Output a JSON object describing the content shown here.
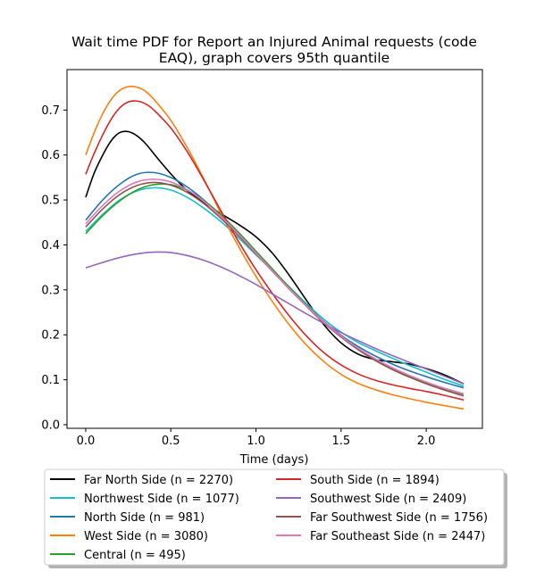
{
  "chart_data": {
    "type": "line",
    "title_lines": [
      "Wait time PDF for Report an Injured Animal  requests (code",
      "EAQ), graph covers 95th quantile"
    ],
    "xlabel": "Time (days)",
    "ylabel": "",
    "xlim": [
      -0.11,
      2.33
    ],
    "ylim": [
      -0.008,
      0.79
    ],
    "x_ticks": [
      0.0,
      0.5,
      1.0,
      1.5,
      2.0
    ],
    "x_tick_labels": [
      "0.0",
      "0.5",
      "1.0",
      "1.5",
      "2.0"
    ],
    "y_ticks": [
      0.0,
      0.1,
      0.2,
      0.3,
      0.4,
      0.5,
      0.6,
      0.7
    ],
    "y_tick_labels": [
      "0.0",
      "0.1",
      "0.2",
      "0.3",
      "0.4",
      "0.5",
      "0.6",
      "0.7"
    ],
    "grid": false,
    "legend_placement": "below plot, two columns",
    "series": [
      {
        "name": "Far North Side (n = 2270)",
        "color": "#000000",
        "points": [
          [
            0,
            0.506
          ],
          [
            0.05,
            0.56
          ],
          [
            0.1,
            0.6
          ],
          [
            0.15,
            0.632
          ],
          [
            0.2,
            0.65
          ],
          [
            0.25,
            0.652
          ],
          [
            0.3,
            0.643
          ],
          [
            0.35,
            0.626
          ],
          [
            0.4,
            0.603
          ],
          [
            0.45,
            0.58
          ],
          [
            0.5,
            0.558
          ],
          [
            0.55,
            0.538
          ],
          [
            0.6,
            0.52
          ],
          [
            0.7,
            0.493
          ],
          [
            0.8,
            0.468
          ],
          [
            0.9,
            0.445
          ],
          [
            1.0,
            0.418
          ],
          [
            1.1,
            0.38
          ],
          [
            1.2,
            0.33
          ],
          [
            1.3,
            0.275
          ],
          [
            1.4,
            0.222
          ],
          [
            1.5,
            0.182
          ],
          [
            1.6,
            0.157
          ],
          [
            1.7,
            0.145
          ],
          [
            1.8,
            0.14
          ],
          [
            1.9,
            0.135
          ],
          [
            2.0,
            0.125
          ],
          [
            2.1,
            0.112
          ],
          [
            2.22,
            0.091
          ]
        ]
      },
      {
        "name": "Northwest Side (n = 1077)",
        "color": "#17becf",
        "points": [
          [
            0,
            0.43
          ],
          [
            0.1,
            0.468
          ],
          [
            0.2,
            0.5
          ],
          [
            0.3,
            0.52
          ],
          [
            0.4,
            0.527
          ],
          [
            0.5,
            0.522
          ],
          [
            0.6,
            0.505
          ],
          [
            0.7,
            0.48
          ],
          [
            0.8,
            0.45
          ],
          [
            0.9,
            0.415
          ],
          [
            1.0,
            0.378
          ],
          [
            1.1,
            0.342
          ],
          [
            1.2,
            0.305
          ],
          [
            1.3,
            0.268
          ],
          [
            1.4,
            0.234
          ],
          [
            1.5,
            0.206
          ],
          [
            1.6,
            0.183
          ],
          [
            1.7,
            0.165
          ],
          [
            1.8,
            0.148
          ],
          [
            1.9,
            0.132
          ],
          [
            2.0,
            0.117
          ],
          [
            2.1,
            0.102
          ],
          [
            2.22,
            0.086
          ]
        ]
      },
      {
        "name": "North Side (n = 981)",
        "color": "#1f77b4",
        "points": [
          [
            0,
            0.455
          ],
          [
            0.1,
            0.5
          ],
          [
            0.2,
            0.535
          ],
          [
            0.3,
            0.557
          ],
          [
            0.4,
            0.561
          ],
          [
            0.5,
            0.55
          ],
          [
            0.6,
            0.528
          ],
          [
            0.7,
            0.498
          ],
          [
            0.8,
            0.462
          ],
          [
            0.9,
            0.422
          ],
          [
            1.0,
            0.381
          ],
          [
            1.1,
            0.341
          ],
          [
            1.2,
            0.302
          ],
          [
            1.3,
            0.264
          ],
          [
            1.4,
            0.229
          ],
          [
            1.5,
            0.199
          ],
          [
            1.6,
            0.174
          ],
          [
            1.7,
            0.153
          ],
          [
            1.8,
            0.135
          ],
          [
            1.9,
            0.12
          ],
          [
            2.0,
            0.107
          ],
          [
            2.1,
            0.095
          ],
          [
            2.22,
            0.082
          ]
        ]
      },
      {
        "name": "West Side (n = 3080)",
        "color": "#ff7f0e",
        "points": [
          [
            0,
            0.6
          ],
          [
            0.05,
            0.65
          ],
          [
            0.1,
            0.692
          ],
          [
            0.15,
            0.724
          ],
          [
            0.2,
            0.744
          ],
          [
            0.25,
            0.752
          ],
          [
            0.3,
            0.751
          ],
          [
            0.35,
            0.742
          ],
          [
            0.4,
            0.724
          ],
          [
            0.5,
            0.677
          ],
          [
            0.6,
            0.614
          ],
          [
            0.7,
            0.542
          ],
          [
            0.8,
            0.466
          ],
          [
            0.9,
            0.395
          ],
          [
            1.0,
            0.33
          ],
          [
            1.1,
            0.272
          ],
          [
            1.2,
            0.22
          ],
          [
            1.3,
            0.176
          ],
          [
            1.4,
            0.14
          ],
          [
            1.5,
            0.112
          ],
          [
            1.6,
            0.092
          ],
          [
            1.7,
            0.078
          ],
          [
            1.8,
            0.067
          ],
          [
            1.9,
            0.058
          ],
          [
            2.0,
            0.05
          ],
          [
            2.1,
            0.043
          ],
          [
            2.22,
            0.035
          ]
        ]
      },
      {
        "name": "Central (n = 495)",
        "color": "#2ca02c",
        "points": [
          [
            0,
            0.425
          ],
          [
            0.1,
            0.465
          ],
          [
            0.2,
            0.498
          ],
          [
            0.3,
            0.522
          ],
          [
            0.4,
            0.534
          ],
          [
            0.5,
            0.534
          ],
          [
            0.6,
            0.521
          ],
          [
            0.7,
            0.497
          ],
          [
            0.8,
            0.465
          ],
          [
            0.9,
            0.427
          ],
          [
            1.0,
            0.386
          ],
          [
            1.1,
            0.345
          ],
          [
            1.2,
            0.304
          ],
          [
            1.3,
            0.265
          ],
          [
            1.4,
            0.228
          ],
          [
            1.5,
            0.196
          ],
          [
            1.6,
            0.168
          ],
          [
            1.7,
            0.145
          ],
          [
            1.8,
            0.125
          ],
          [
            1.9,
            0.108
          ],
          [
            2.0,
            0.094
          ],
          [
            2.1,
            0.081
          ],
          [
            2.22,
            0.068
          ]
        ]
      },
      {
        "name": "South Side (n = 1894)",
        "color": "#d62728",
        "points": [
          [
            0,
            0.557
          ],
          [
            0.05,
            0.604
          ],
          [
            0.1,
            0.645
          ],
          [
            0.15,
            0.68
          ],
          [
            0.2,
            0.705
          ],
          [
            0.25,
            0.718
          ],
          [
            0.3,
            0.72
          ],
          [
            0.35,
            0.714
          ],
          [
            0.4,
            0.7
          ],
          [
            0.5,
            0.66
          ],
          [
            0.6,
            0.605
          ],
          [
            0.7,
            0.54
          ],
          [
            0.8,
            0.472
          ],
          [
            0.9,
            0.406
          ],
          [
            1.0,
            0.345
          ],
          [
            1.1,
            0.29
          ],
          [
            1.2,
            0.24
          ],
          [
            1.3,
            0.196
          ],
          [
            1.4,
            0.16
          ],
          [
            1.5,
            0.133
          ],
          [
            1.6,
            0.113
          ],
          [
            1.7,
            0.099
          ],
          [
            1.8,
            0.089
          ],
          [
            1.9,
            0.081
          ],
          [
            2.0,
            0.074
          ],
          [
            2.1,
            0.066
          ],
          [
            2.22,
            0.055
          ]
        ]
      },
      {
        "name": "Southwest Side (n = 2409)",
        "color": "#9467bd",
        "points": [
          [
            0,
            0.349
          ],
          [
            0.1,
            0.361
          ],
          [
            0.2,
            0.372
          ],
          [
            0.3,
            0.38
          ],
          [
            0.4,
            0.384
          ],
          [
            0.5,
            0.383
          ],
          [
            0.6,
            0.376
          ],
          [
            0.7,
            0.365
          ],
          [
            0.8,
            0.35
          ],
          [
            0.9,
            0.332
          ],
          [
            1.0,
            0.312
          ],
          [
            1.1,
            0.29
          ],
          [
            1.2,
            0.268
          ],
          [
            1.3,
            0.246
          ],
          [
            1.4,
            0.225
          ],
          [
            1.5,
            0.205
          ],
          [
            1.6,
            0.187
          ],
          [
            1.7,
            0.17
          ],
          [
            1.8,
            0.154
          ],
          [
            1.9,
            0.139
          ],
          [
            2.0,
            0.124
          ],
          [
            2.1,
            0.109
          ],
          [
            2.22,
            0.091
          ]
        ]
      },
      {
        "name": "Far Southwest Side (n = 1756)",
        "color": "#8c564b",
        "points": [
          [
            0,
            0.44
          ],
          [
            0.1,
            0.48
          ],
          [
            0.2,
            0.512
          ],
          [
            0.3,
            0.532
          ],
          [
            0.4,
            0.539
          ],
          [
            0.5,
            0.533
          ],
          [
            0.6,
            0.516
          ],
          [
            0.7,
            0.49
          ],
          [
            0.8,
            0.457
          ],
          [
            0.9,
            0.42
          ],
          [
            1.0,
            0.38
          ],
          [
            1.1,
            0.34
          ],
          [
            1.2,
            0.3
          ],
          [
            1.3,
            0.262
          ],
          [
            1.4,
            0.226
          ],
          [
            1.5,
            0.195
          ],
          [
            1.6,
            0.167
          ],
          [
            1.7,
            0.143
          ],
          [
            1.8,
            0.123
          ],
          [
            1.9,
            0.106
          ],
          [
            2.0,
            0.091
          ],
          [
            2.1,
            0.078
          ],
          [
            2.22,
            0.064
          ]
        ]
      },
      {
        "name": "Far Southeast Side (n = 2447)",
        "color": "#e377c2",
        "points": [
          [
            0,
            0.447
          ],
          [
            0.1,
            0.488
          ],
          [
            0.2,
            0.52
          ],
          [
            0.3,
            0.54
          ],
          [
            0.4,
            0.546
          ],
          [
            0.5,
            0.54
          ],
          [
            0.6,
            0.522
          ],
          [
            0.7,
            0.495
          ],
          [
            0.8,
            0.461
          ],
          [
            0.9,
            0.423
          ],
          [
            1.0,
            0.382
          ],
          [
            1.1,
            0.341
          ],
          [
            1.2,
            0.301
          ],
          [
            1.3,
            0.263
          ],
          [
            1.4,
            0.228
          ],
          [
            1.5,
            0.197
          ],
          [
            1.6,
            0.17
          ],
          [
            1.7,
            0.147
          ],
          [
            1.8,
            0.127
          ],
          [
            1.9,
            0.11
          ],
          [
            2.0,
            0.095
          ],
          [
            2.1,
            0.082
          ],
          [
            2.22,
            0.069
          ]
        ]
      }
    ]
  }
}
